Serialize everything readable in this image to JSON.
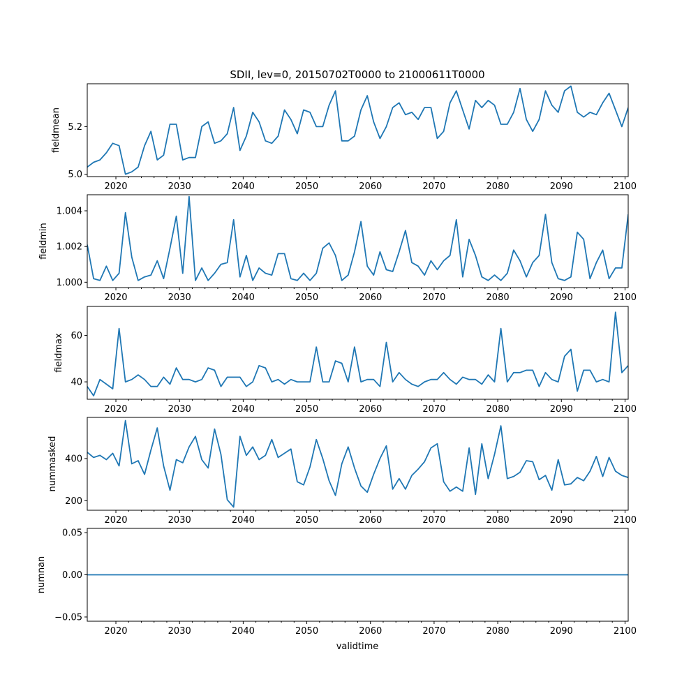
{
  "chart_data": {
    "type": "line",
    "title": "SDII, lev=0, 20150702T0000 to 21000611T0000",
    "xlabel": "validtime",
    "x_start": 2015.5,
    "x_step": 1,
    "xlim": [
      2015.5,
      2100.5
    ],
    "x_ticks": [
      2020,
      2030,
      2040,
      2050,
      2060,
      2070,
      2080,
      2090,
      2100
    ],
    "x_tick_labels": [
      "2020",
      "2030",
      "2040",
      "2050",
      "2060",
      "2070",
      "2080",
      "2090",
      "2100"
    ],
    "color": "#1f77b4",
    "panels": [
      {
        "name": "fieldmean",
        "ylabel": "fieldmean",
        "ylim": [
          4.99,
          5.38
        ],
        "y_ticks": [
          5.0,
          5.2
        ],
        "y_tick_labels": [
          "5.0",
          "5.2"
        ],
        "values": [
          5.03,
          5.05,
          5.06,
          5.09,
          5.13,
          5.12,
          5.0,
          5.01,
          5.03,
          5.12,
          5.18,
          5.06,
          5.08,
          5.21,
          5.21,
          5.06,
          5.07,
          5.07,
          5.2,
          5.22,
          5.13,
          5.14,
          5.17,
          5.28,
          5.1,
          5.16,
          5.26,
          5.22,
          5.14,
          5.13,
          5.16,
          5.27,
          5.23,
          5.17,
          5.27,
          5.26,
          5.2,
          5.2,
          5.29,
          5.35,
          5.14,
          5.14,
          5.16,
          5.27,
          5.33,
          5.22,
          5.15,
          5.2,
          5.28,
          5.3,
          5.25,
          5.26,
          5.23,
          5.28,
          5.28,
          5.15,
          5.18,
          5.3,
          5.35,
          5.27,
          5.19,
          5.31,
          5.28,
          5.31,
          5.29,
          5.21,
          5.21,
          5.26,
          5.36,
          5.23,
          5.18,
          5.23,
          5.35,
          5.29,
          5.26,
          5.35,
          5.37,
          5.26,
          5.24,
          5.26,
          5.25,
          5.3,
          5.34,
          5.27,
          5.2,
          5.28
        ]
      },
      {
        "name": "fieldmin",
        "ylabel": "fieldmin",
        "ylim": [
          0.9997,
          1.0049
        ],
        "y_ticks": [
          1.0,
          1.002,
          1.004
        ],
        "y_tick_labels": [
          "1.000",
          "1.002",
          "1.004"
        ],
        "values": [
          1.0021,
          1.0002,
          1.0001,
          1.0009,
          1.0001,
          1.0005,
          1.0039,
          1.0014,
          1.0001,
          1.0003,
          1.0004,
          1.0012,
          1.0002,
          1.0019,
          1.0037,
          1.0005,
          1.0048,
          1.0001,
          1.0008,
          1.0001,
          1.0005,
          1.001,
          1.0011,
          1.0035,
          1.0003,
          1.0015,
          1.0001,
          1.0008,
          1.0005,
          1.0004,
          1.0016,
          1.0016,
          1.0002,
          1.0001,
          1.0005,
          1.0001,
          1.0005,
          1.0019,
          1.0022,
          1.0015,
          1.0001,
          1.0004,
          1.0017,
          1.0034,
          1.0009,
          1.0004,
          1.0017,
          1.0007,
          1.0006,
          1.0017,
          1.0029,
          1.0011,
          1.0009,
          1.0004,
          1.0012,
          1.0007,
          1.0012,
          1.0015,
          1.0035,
          1.0003,
          1.0024,
          1.0015,
          1.0003,
          1.0001,
          1.0004,
          1.0001,
          1.0005,
          1.0018,
          1.0012,
          1.0003,
          1.0011,
          1.0015,
          1.0038,
          1.0011,
          1.0002,
          1.0001,
          1.0003,
          1.0028,
          1.0024,
          1.0002,
          1.0011,
          1.0018,
          1.0002,
          1.0008,
          1.0008,
          1.0038
        ]
      },
      {
        "name": "fieldmax",
        "ylabel": "fieldmax",
        "ylim": [
          32.5,
          72.5
        ],
        "y_ticks": [
          40,
          60
        ],
        "y_tick_labels": [
          "40",
          "60"
        ],
        "values": [
          38,
          34,
          41,
          39,
          37,
          63,
          40,
          41,
          43,
          41,
          38,
          38,
          42,
          39,
          46,
          41,
          41,
          40,
          41,
          46,
          45,
          38,
          42,
          42,
          42,
          38,
          40,
          47,
          46,
          40,
          41,
          39,
          41,
          40,
          40,
          40,
          55,
          40,
          40,
          49,
          48,
          40,
          55,
          40,
          41,
          41,
          38,
          57,
          40,
          44,
          41,
          39,
          38,
          40,
          41,
          41,
          44,
          41,
          39,
          42,
          41,
          41,
          39,
          43,
          40,
          63,
          40,
          44,
          44,
          45,
          45,
          38,
          44,
          41,
          40,
          51,
          54,
          36,
          45,
          45,
          40,
          41,
          40,
          70,
          44,
          47
        ]
      },
      {
        "name": "nummasked",
        "ylabel": "nummasked",
        "ylim": [
          155,
          595
        ],
        "y_ticks": [
          200,
          400
        ],
        "y_tick_labels": [
          "200",
          "400"
        ],
        "values": [
          430,
          405,
          415,
          395,
          425,
          365,
          580,
          375,
          390,
          325,
          440,
          545,
          365,
          250,
          395,
          380,
          455,
          505,
          395,
          355,
          540,
          420,
          205,
          170,
          505,
          415,
          455,
          395,
          415,
          490,
          405,
          425,
          445,
          290,
          275,
          360,
          490,
          400,
          295,
          225,
          375,
          455,
          355,
          270,
          240,
          325,
          400,
          460,
          255,
          305,
          255,
          320,
          350,
          385,
          450,
          470,
          290,
          245,
          265,
          245,
          450,
          230,
          470,
          305,
          420,
          555,
          305,
          315,
          335,
          390,
          385,
          300,
          320,
          250,
          395,
          275,
          280,
          310,
          295,
          340,
          410,
          315,
          405,
          340,
          320,
          310
        ]
      },
      {
        "name": "numnan",
        "ylabel": "numnan",
        "ylim": [
          -0.055,
          0.055
        ],
        "y_ticks": [
          -0.05,
          0.0,
          0.05
        ],
        "y_tick_labels": [
          "−0.05",
          "0.00",
          "0.05"
        ],
        "values": [
          0,
          0,
          0,
          0,
          0,
          0,
          0,
          0,
          0,
          0,
          0,
          0,
          0,
          0,
          0,
          0,
          0,
          0,
          0,
          0,
          0,
          0,
          0,
          0,
          0,
          0,
          0,
          0,
          0,
          0,
          0,
          0,
          0,
          0,
          0,
          0,
          0,
          0,
          0,
          0,
          0,
          0,
          0,
          0,
          0,
          0,
          0,
          0,
          0,
          0,
          0,
          0,
          0,
          0,
          0,
          0,
          0,
          0,
          0,
          0,
          0,
          0,
          0,
          0,
          0,
          0,
          0,
          0,
          0,
          0,
          0,
          0,
          0,
          0,
          0,
          0,
          0,
          0,
          0,
          0,
          0,
          0,
          0,
          0,
          0,
          0
        ]
      }
    ]
  }
}
